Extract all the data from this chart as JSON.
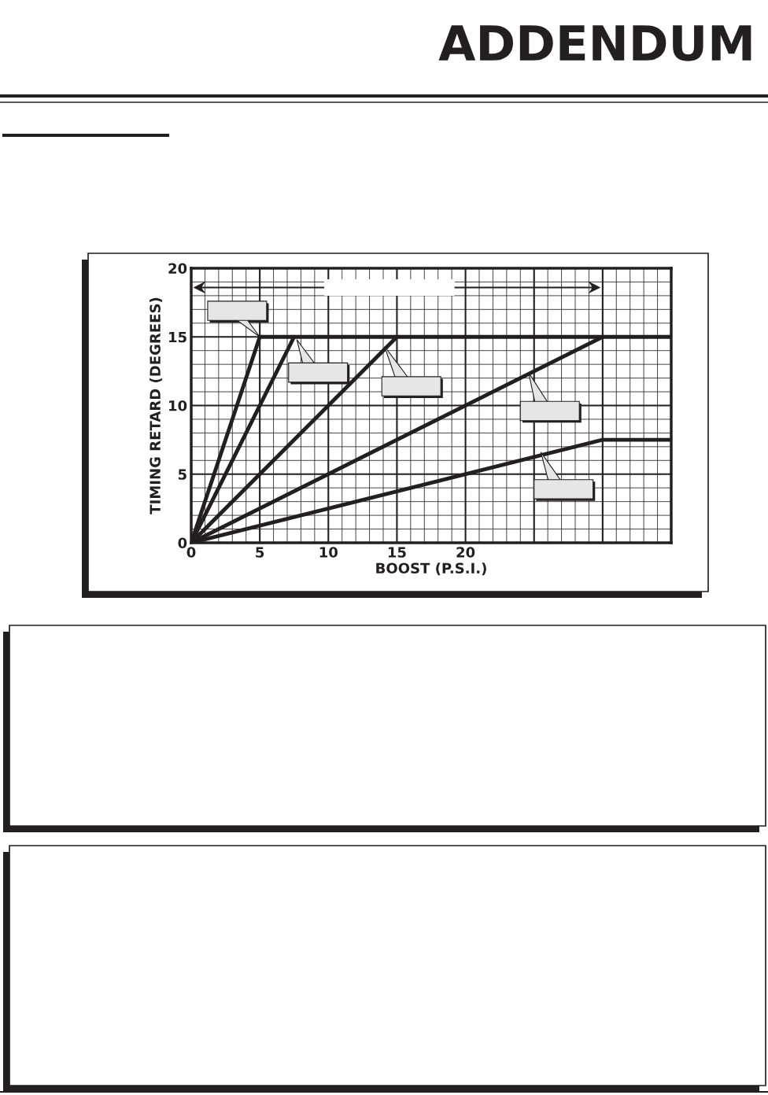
{
  "chart_data": {
    "type": "line",
    "title": "ADDENDUM",
    "xlabel": "BOOST (P.S.I.)",
    "ylabel": "TIMING RETARD (DEGREES)",
    "xlim": [
      0,
      35
    ],
    "ylim": [
      0,
      20
    ],
    "xticks": [
      0,
      5,
      10,
      15,
      20
    ],
    "yticks": [
      0,
      5,
      10,
      15,
      20
    ],
    "grid": true,
    "color": "#231f20",
    "series": [
      {
        "x": [
          0,
          5,
          35
        ],
        "values": [
          0,
          15,
          15
        ]
      },
      {
        "x": [
          0,
          7.5
        ],
        "values": [
          0,
          15
        ]
      },
      {
        "x": [
          0,
          15
        ],
        "values": [
          0,
          15
        ]
      },
      {
        "x": [
          0,
          30
        ],
        "values": [
          0,
          15
        ]
      },
      {
        "x": [
          0,
          30,
          35
        ],
        "values": [
          0,
          7.5,
          7.5
        ]
      }
    ]
  }
}
